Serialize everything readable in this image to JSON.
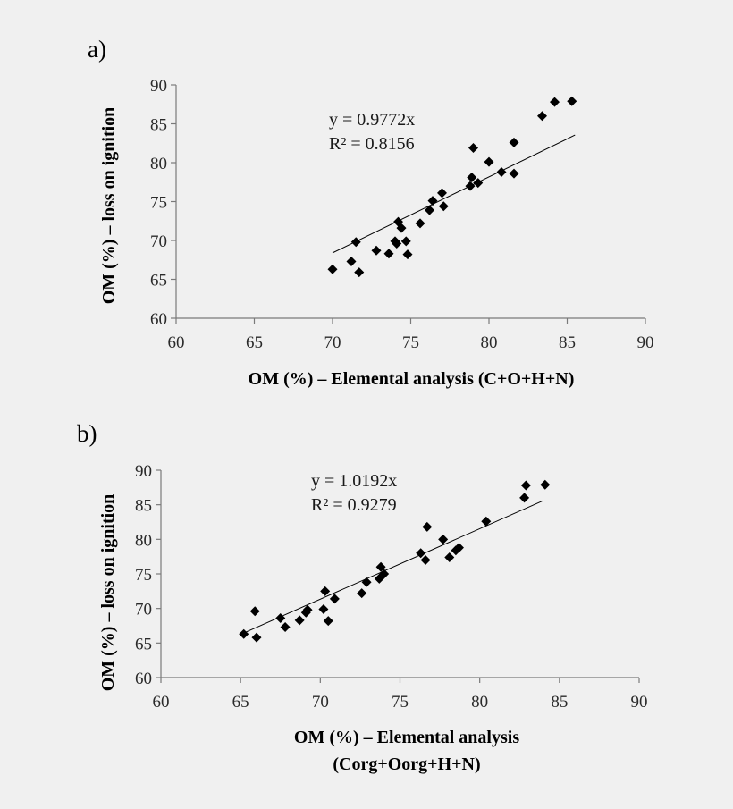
{
  "chart_data": [
    {
      "type": "scatter",
      "panel_label": "a)",
      "xlabel": [
        "OM (%) – Elemental analysis (C+O+H+N)"
      ],
      "ylabel": "OM (%) – loss on ignition",
      "xlim": [
        60,
        90
      ],
      "ylim": [
        60,
        90
      ],
      "xticks": [
        60,
        65,
        70,
        75,
        80,
        85,
        90
      ],
      "yticks": [
        60,
        65,
        70,
        75,
        80,
        85,
        90
      ],
      "grid": false,
      "equation": "y = 0.9772x",
      "r2_label": "R² = 0.8156",
      "trendline": {
        "slope": 0.9772,
        "x_range": [
          70.0,
          85.5
        ]
      },
      "points": {
        "x": [
          70.0,
          71.2,
          71.5,
          71.7,
          72.8,
          73.6,
          74.0,
          74.1,
          74.2,
          74.4,
          74.7,
          74.8,
          75.6,
          76.2,
          76.4,
          77.0,
          77.1,
          78.8,
          78.9,
          79.0,
          79.3,
          80.0,
          80.8,
          81.6,
          81.6,
          83.4,
          84.2,
          85.3
        ],
        "y": [
          66.3,
          67.3,
          69.8,
          65.9,
          68.7,
          68.3,
          69.9,
          69.6,
          72.4,
          71.6,
          69.9,
          68.2,
          72.2,
          73.9,
          75.1,
          76.1,
          74.4,
          77.0,
          78.1,
          81.9,
          77.4,
          80.1,
          78.8,
          82.6,
          78.6,
          86.0,
          87.8,
          87.9
        ]
      }
    },
    {
      "type": "scatter",
      "panel_label": "b)",
      "xlabel": [
        "OM (%) – Elemental analysis",
        "(Corg+Oorg+H+N)"
      ],
      "ylabel": "OM (%) – loss on ignition",
      "xlim": [
        60,
        90
      ],
      "ylim": [
        60,
        90
      ],
      "xticks": [
        60,
        65,
        70,
        75,
        80,
        85,
        90
      ],
      "yticks": [
        60,
        65,
        70,
        75,
        80,
        85,
        90
      ],
      "grid": false,
      "equation": "y = 1.0192x",
      "r2_label": "R² = 0.9279",
      "trendline": {
        "slope": 1.0192,
        "x_range": [
          65.3,
          84.0
        ]
      },
      "points": {
        "x": [
          65.2,
          65.9,
          66.0,
          67.5,
          67.8,
          68.7,
          69.1,
          69.2,
          70.2,
          70.3,
          70.5,
          70.9,
          72.6,
          72.9,
          73.7,
          73.8,
          74.0,
          76.3,
          76.6,
          76.7,
          77.7,
          78.1,
          78.5,
          78.7,
          80.4,
          82.8,
          82.9,
          84.1
        ],
        "y": [
          66.3,
          69.6,
          65.8,
          68.6,
          67.3,
          68.3,
          69.4,
          69.8,
          69.9,
          72.5,
          68.2,
          71.4,
          72.2,
          73.8,
          74.3,
          76.0,
          75.0,
          78.0,
          77.0,
          81.8,
          80.0,
          77.4,
          78.4,
          78.8,
          82.6,
          86.0,
          87.8,
          87.9
        ]
      }
    }
  ]
}
